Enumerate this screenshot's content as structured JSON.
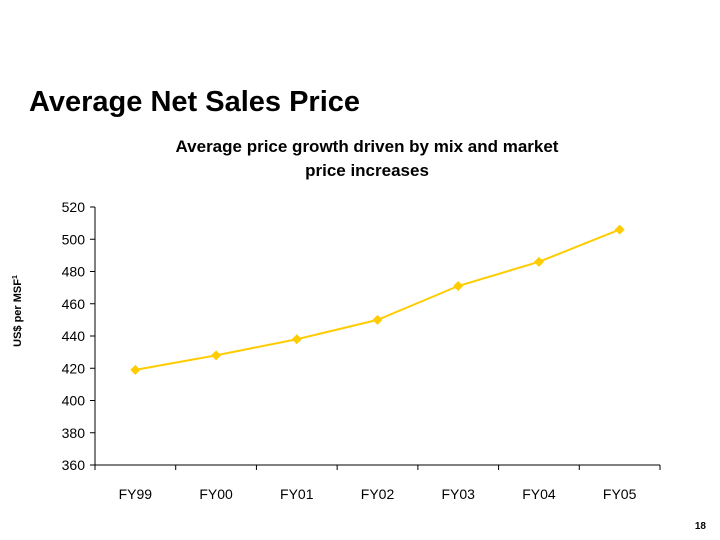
{
  "slide": {
    "title": "Average Net Sales Price",
    "page_number": "18"
  },
  "chart_data": {
    "type": "line",
    "subtitle_lines": [
      "Average price growth driven by mix and market",
      "price increases"
    ],
    "xlabel": "",
    "ylabel": "US$ per MSF",
    "ylabel_superscript": "1",
    "categories": [
      "FY99",
      "FY00",
      "FY01",
      "FY02",
      "FY03",
      "FY04",
      "FY05"
    ],
    "series": [
      {
        "values": [
          419,
          428,
          438,
          450,
          471,
          486,
          506
        ]
      }
    ],
    "ylim": [
      360,
      520
    ],
    "yticks": [
      360,
      380,
      400,
      420,
      440,
      460,
      480,
      500,
      520
    ],
    "grid": false,
    "legend": "none",
    "line_color": "#FFCC00",
    "marker": "diamond"
  }
}
